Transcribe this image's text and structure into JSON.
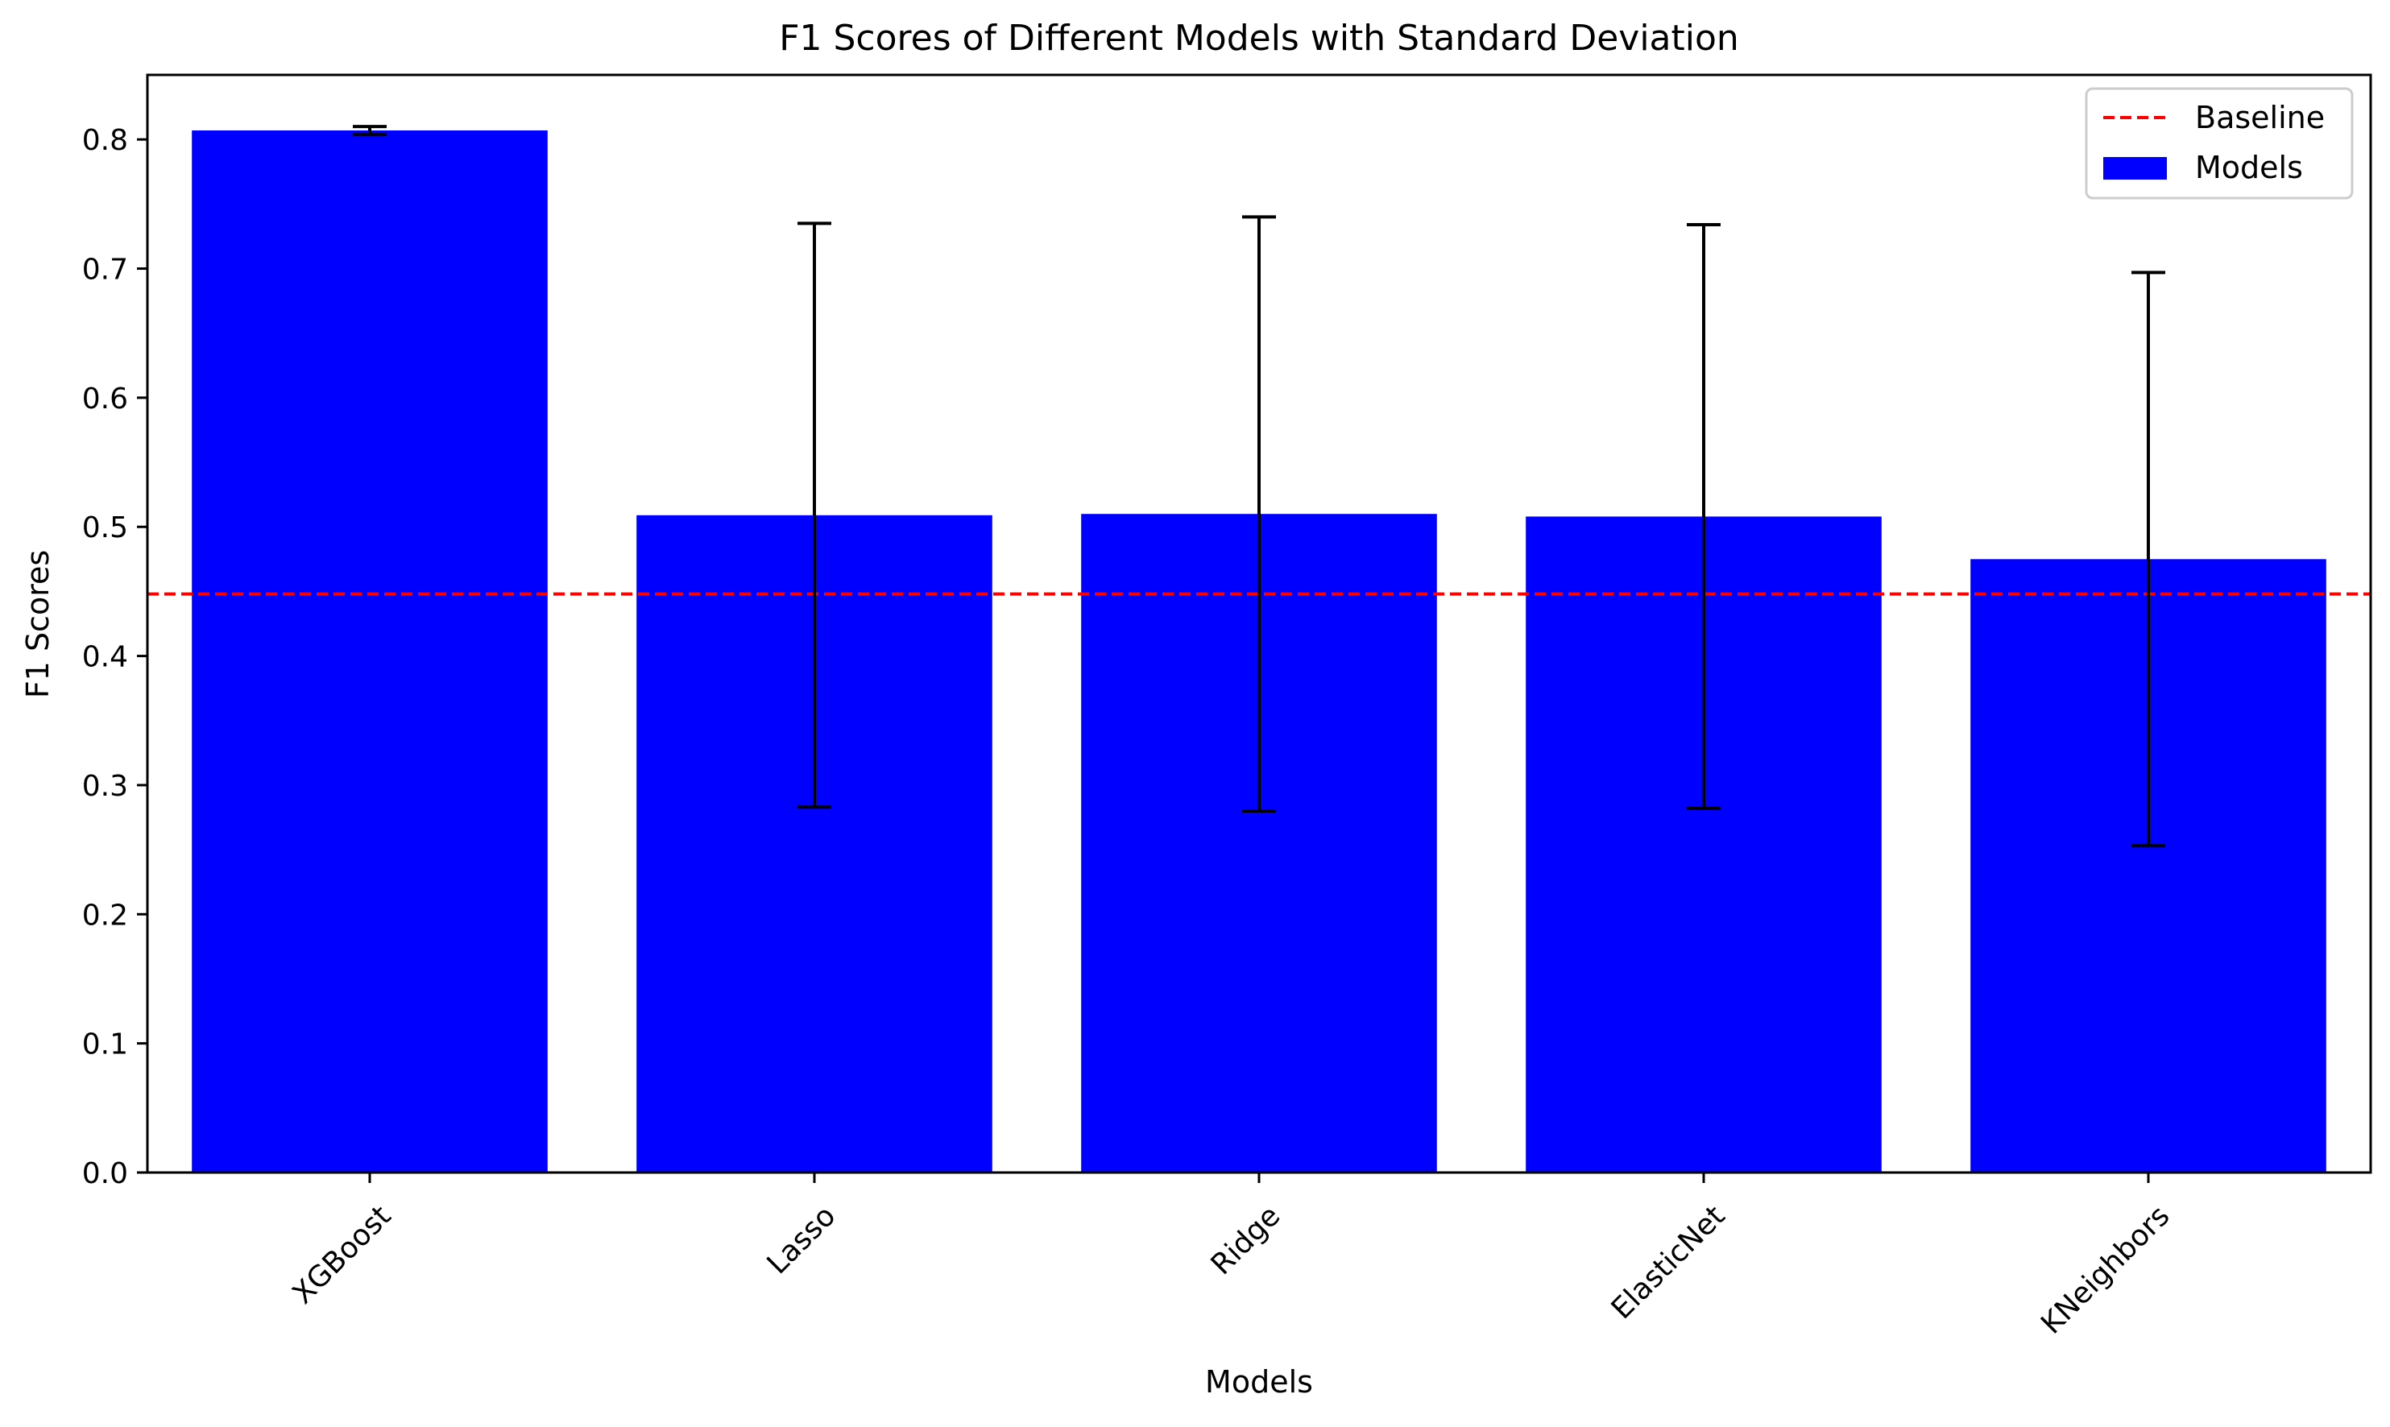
{
  "chart_data": {
    "type": "bar",
    "title": "F1 Scores of Different Models with Standard Deviation",
    "xlabel": "Models",
    "ylabel": "F1 Scores",
    "categories": [
      "XGBoost",
      "Lasso",
      "Ridge",
      "ElasticNet",
      "KNeighbors"
    ],
    "series": [
      {
        "name": "Models",
        "values": [
          0.807,
          0.509,
          0.51,
          0.508,
          0.475
        ],
        "error": [
          0.003,
          0.226,
          0.23,
          0.226,
          0.222
        ],
        "color": "#0000ff"
      }
    ],
    "baseline": {
      "name": "Baseline",
      "value": 0.448,
      "color": "#ff0000",
      "style": "dashed"
    },
    "ylim": [
      0,
      0.85
    ],
    "yticks": [
      0.0,
      0.1,
      0.2,
      0.3,
      0.4,
      0.5,
      0.6,
      0.7,
      0.8
    ],
    "ytick_labels": [
      "0.0",
      "0.1",
      "0.2",
      "0.3",
      "0.4",
      "0.5",
      "0.6",
      "0.7",
      "0.8"
    ],
    "xtick_rotation_deg": 45,
    "grid": false,
    "legend": {
      "placement": "top-right",
      "entries": [
        "Baseline",
        "Models"
      ]
    }
  }
}
